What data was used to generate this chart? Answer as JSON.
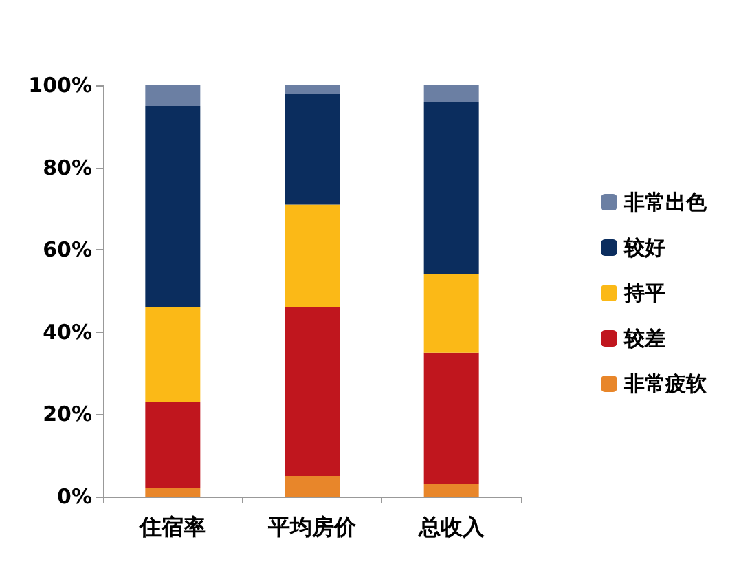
{
  "chart_data": {
    "type": "bar",
    "stacked": true,
    "categories": [
      "住宿率",
      "平均房价",
      "总收入"
    ],
    "series": [
      {
        "name": "非常疲软",
        "color": "#e8862a",
        "values": [
          2,
          5,
          3
        ]
      },
      {
        "name": "较差",
        "color": "#c0161e",
        "values": [
          21,
          41,
          32
        ]
      },
      {
        "name": "持平",
        "color": "#fbb917",
        "values": [
          23,
          25,
          19
        ]
      },
      {
        "name": "较好",
        "color": "#0b2d5e",
        "values": [
          49,
          27,
          42
        ]
      },
      {
        "name": "非常出色",
        "color": "#6b7fa3",
        "values": [
          5,
          2,
          4
        ]
      }
    ],
    "ylim": [
      0,
      100
    ],
    "yticks": [
      {
        "value": 0,
        "label": "0%"
      },
      {
        "value": 20,
        "label": "20%"
      },
      {
        "value": 40,
        "label": "40%"
      },
      {
        "value": 60,
        "label": "60%"
      },
      {
        "value": 80,
        "label": "80%"
      },
      {
        "value": 100,
        "label": "100%"
      }
    ],
    "grid": false,
    "legend": "right"
  }
}
